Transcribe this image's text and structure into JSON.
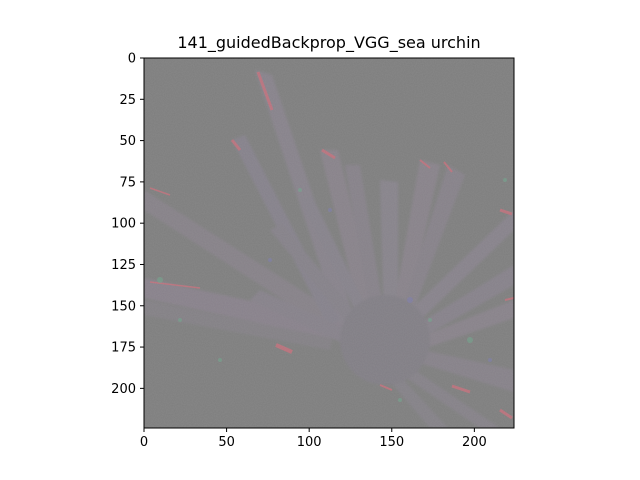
{
  "title": "141_guidedBackprop_VGG_sea urchin",
  "image": {
    "description_icon": "guided-backprop-saliency-map",
    "background_color": "#7c7c7c",
    "highlight_colors": [
      "#c86e7a",
      "#6ea88c",
      "#7a7ab0"
    ]
  },
  "axes": {
    "x_ticks": [
      "0",
      "50",
      "100",
      "150",
      "200"
    ],
    "x_tick_values": [
      0,
      50,
      100,
      150,
      200
    ],
    "y_ticks": [
      "0",
      "25",
      "50",
      "75",
      "100",
      "125",
      "150",
      "175",
      "200"
    ],
    "y_tick_values": [
      0,
      25,
      50,
      75,
      100,
      125,
      150,
      175,
      200
    ],
    "x_range": [
      0,
      224
    ],
    "y_range": [
      0,
      224
    ]
  }
}
